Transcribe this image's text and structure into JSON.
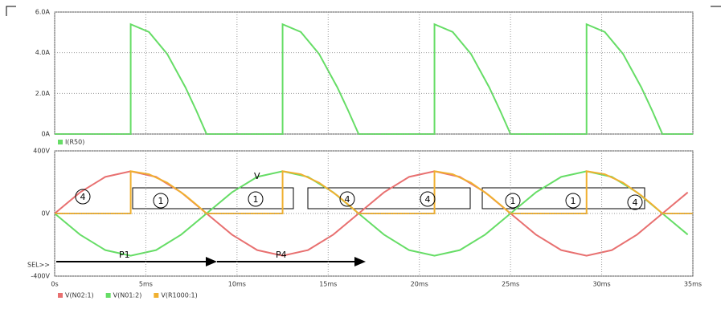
{
  "chart_data": [
    {
      "type": "line",
      "x": [
        0,
        4.17,
        4.17,
        5.17,
        6.17,
        7.17,
        7.77,
        8.33,
        12.5,
        12.5,
        13.5,
        14.5,
        15.5,
        16.1,
        16.67,
        20.83,
        20.83,
        21.83,
        22.83,
        23.83,
        24.43,
        25,
        29.17,
        29.17,
        30.17,
        31.17,
        32.17,
        32.77,
        33.33,
        35
      ],
      "series": [
        {
          "name": "I(R50)",
          "color": "#66dd66",
          "values": [
            0,
            0,
            5.4,
            5.02,
            3.94,
            2.3,
            1.15,
            0,
            0,
            5.4,
            5.02,
            3.94,
            2.3,
            1.15,
            0,
            0,
            5.4,
            5.02,
            3.94,
            2.3,
            1.15,
            0,
            0,
            5.4,
            5.02,
            3.94,
            2.3,
            1.15,
            0,
            0
          ]
        }
      ],
      "xlim": [
        0,
        35
      ],
      "ylim": [
        0,
        6
      ],
      "yticks": [
        {
          "value": 0,
          "label": "0A"
        },
        {
          "value": 2,
          "label": "2.0A"
        },
        {
          "value": 4,
          "label": "4.0A"
        },
        {
          "value": 6,
          "label": "6.0A"
        }
      ],
      "grid": true
    },
    {
      "type": "line",
      "x": [
        0,
        1.39,
        2.78,
        4.17,
        5.56,
        6.94,
        8.33,
        9.72,
        11.11,
        12.5,
        13.89,
        15.28,
        16.67,
        18.06,
        19.44,
        20.83,
        22.22,
        23.61,
        25,
        26.39,
        27.78,
        29.17,
        30.56,
        31.94,
        33.33,
        34.72
      ],
      "series": [
        {
          "name": "V(N02:1)",
          "color": "#e87070",
          "values": [
            0,
            135,
            234,
            270,
            234,
            135,
            0,
            -135,
            -234,
            -270,
            -234,
            -135,
            0,
            135,
            234,
            270,
            234,
            135,
            0,
            -135,
            -234,
            -270,
            -234,
            -135,
            0,
            135
          ]
        },
        {
          "name": "V(N01:2)",
          "color": "#66dd66",
          "values": [
            0,
            -135,
            -234,
            -270,
            -234,
            -135,
            0,
            135,
            234,
            270,
            234,
            135,
            0,
            -135,
            -234,
            -270,
            -234,
            -135,
            0,
            135,
            234,
            270,
            234,
            135,
            0,
            -135
          ]
        },
        {
          "name": "V(R1000:1)",
          "color": "#f0b030",
          "x": [
            0,
            4.17,
            4.17,
            5.17,
            6.17,
            7.17,
            7.77,
            8.33,
            12.5,
            12.5,
            13.5,
            14.5,
            15.5,
            16.1,
            16.67,
            20.83,
            20.83,
            21.83,
            22.83,
            23.83,
            24.43,
            25,
            29.17,
            29.17,
            30.17,
            31.17,
            32.17,
            32.77,
            33.33,
            35
          ],
          "values": [
            0,
            0,
            270,
            251,
            197,
            115,
            57,
            0,
            0,
            270,
            251,
            197,
            115,
            57,
            0,
            0,
            270,
            251,
            197,
            115,
            57,
            0,
            0,
            270,
            251,
            197,
            115,
            57,
            0,
            0
          ]
        }
      ],
      "xlim": [
        0,
        35
      ],
      "ylim": [
        -400,
        400
      ],
      "yticks": [
        {
          "value": -400,
          "label": "-400V"
        },
        {
          "value": 0,
          "label": "0V"
        },
        {
          "value": 400,
          "label": "400V"
        }
      ],
      "xticks": [
        {
          "value": 0,
          "label": "0s"
        },
        {
          "value": 5,
          "label": "5ms"
        },
        {
          "value": 10,
          "label": "10ms"
        },
        {
          "value": 15,
          "label": "15ms"
        },
        {
          "value": 20,
          "label": "20ms"
        },
        {
          "value": 25,
          "label": "25ms"
        },
        {
          "value": 30,
          "label": "30ms"
        },
        {
          "value": 35,
          "label": "35ms"
        }
      ],
      "grid": true,
      "annotations": [
        "4",
        "1",
        "1",
        "4",
        "4",
        "1",
        "1",
        "4"
      ],
      "note_v": "V",
      "arrow_labels": [
        "P1",
        "P4"
      ],
      "selector": "SEL>>"
    }
  ]
}
